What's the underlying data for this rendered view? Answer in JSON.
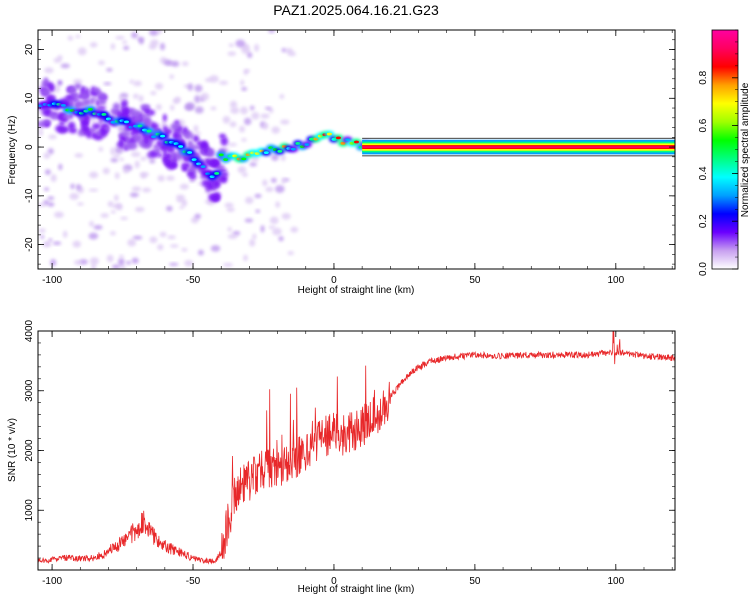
{
  "chart_data": [
    {
      "type": "heatmap",
      "title": "PAZ1.2025.064.16.21.G23",
      "xlabel": "Height of straight line (km)",
      "ylabel": "Frequency (Hz)",
      "xlim": [
        -105,
        121
      ],
      "ylim": [
        -25,
        24
      ],
      "xticks": [
        -100,
        -50,
        0,
        50,
        100
      ],
      "yticks": [
        -20,
        -10,
        0,
        10,
        20
      ],
      "colorbar": {
        "label": "Normalized spectral amplitude",
        "range": [
          0,
          1
        ],
        "ticks": [
          0.0,
          0.2,
          0.4,
          0.6,
          0.8
        ],
        "tick_labels": [
          "0.0",
          "0.2",
          "0.4",
          "0.6",
          "0.8"
        ],
        "colors": [
          "#ffffff",
          "#c8a0f0",
          "#6a00ff",
          "#0000ff",
          "#00a0ff",
          "#00ffff",
          "#00ff80",
          "#00ff00",
          "#a0ff00",
          "#ffff00",
          "#ffa000",
          "#ff0000",
          "#ff0060",
          "#ff00a0"
        ]
      },
      "ridge": {
        "x": [
          -104,
          -95,
          -85,
          -75,
          -65,
          -55,
          -50,
          -45,
          -42,
          -40,
          -35,
          -30,
          -25,
          -20,
          -15,
          -10,
          -5,
          -3,
          0,
          5,
          10,
          15,
          20,
          121
        ],
        "y": [
          9,
          8,
          7,
          5,
          3,
          0,
          -2,
          -5,
          -7,
          -2,
          -2,
          -2,
          -1,
          -0.5,
          0,
          0.5,
          2,
          3,
          2,
          1,
          0.5,
          0,
          0,
          0
        ]
      },
      "grid": false
    },
    {
      "type": "line",
      "title": "",
      "xlabel": "Height of straight line (km)",
      "ylabel": "SNR (10 * v/v)",
      "xlim": [
        -105,
        121
      ],
      "ylim": [
        0,
        4000
      ],
      "xticks": [
        -100,
        -50,
        0,
        50,
        100
      ],
      "yticks": [
        1000,
        2000,
        3000,
        4000
      ],
      "series": [
        {
          "color": "#e8282a",
          "x": [
            -104,
            -95,
            -85,
            -75,
            -70,
            -67,
            -65,
            -60,
            -55,
            -50,
            -45,
            -42,
            -40,
            -38,
            -35,
            -30,
            -25,
            -20,
            -15,
            -10,
            -5,
            0,
            5,
            10,
            15,
            20,
            25,
            30,
            35,
            40,
            50,
            60,
            70,
            80,
            90,
            100,
            110,
            121
          ],
          "values": [
            150,
            200,
            200,
            450,
            700,
            800,
            600,
            400,
            300,
            200,
            150,
            150,
            300,
            700,
            1300,
            1500,
            1700,
            1700,
            1800,
            2000,
            2200,
            2300,
            2300,
            2400,
            2600,
            2900,
            3200,
            3400,
            3500,
            3550,
            3600,
            3580,
            3600,
            3600,
            3600,
            3650,
            3580,
            3550
          ]
        }
      ],
      "grid": false
    }
  ]
}
